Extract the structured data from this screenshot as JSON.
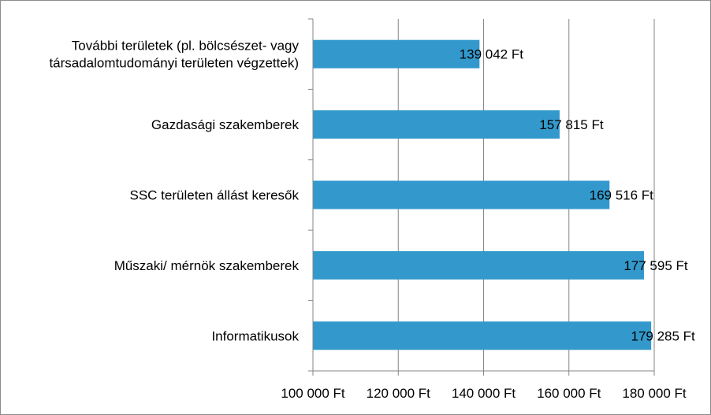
{
  "chart_data": {
    "type": "bar",
    "orientation": "horizontal",
    "title": "",
    "xlabel": "",
    "ylabel": "",
    "categories": [
      "További területek (pl. bölcsészet- vagy társadalomtudományi területen végzettek)",
      "Gazdasági szakemberek",
      "SSC területen állást keresők",
      "Műszaki/ mérnök szakemberek",
      "Informatikusok"
    ],
    "category_lines": [
      [
        "További területek (pl. bölcsészet- vagy",
        "társadalomtudományi területen végzettek)"
      ],
      [
        "Gazdasági szakemberek"
      ],
      [
        "SSC területen állást keresők"
      ],
      [
        "Műszaki/ mérnök szakemberek"
      ],
      [
        "Informatikusok"
      ]
    ],
    "values": [
      139042,
      157815,
      169516,
      177595,
      179285
    ],
    "data_labels": [
      "139 042 Ft",
      "157 815 Ft",
      "169 516 Ft",
      "177 595 Ft",
      "179 285 Ft"
    ],
    "xlim": [
      100000,
      180000
    ],
    "x_ticks": [
      100000,
      120000,
      140000,
      160000,
      180000
    ],
    "x_tick_labels": [
      "100 000 Ft",
      "120 000 Ft",
      "140 000 Ft",
      "160 000 Ft",
      "180 000 Ft"
    ],
    "grid": "vertical",
    "legend": "none",
    "colors": {
      "bar": "#3399cc",
      "gridline": "#868686",
      "axis": "#868686",
      "border": "#8c8c8c",
      "text": "#000000"
    }
  }
}
